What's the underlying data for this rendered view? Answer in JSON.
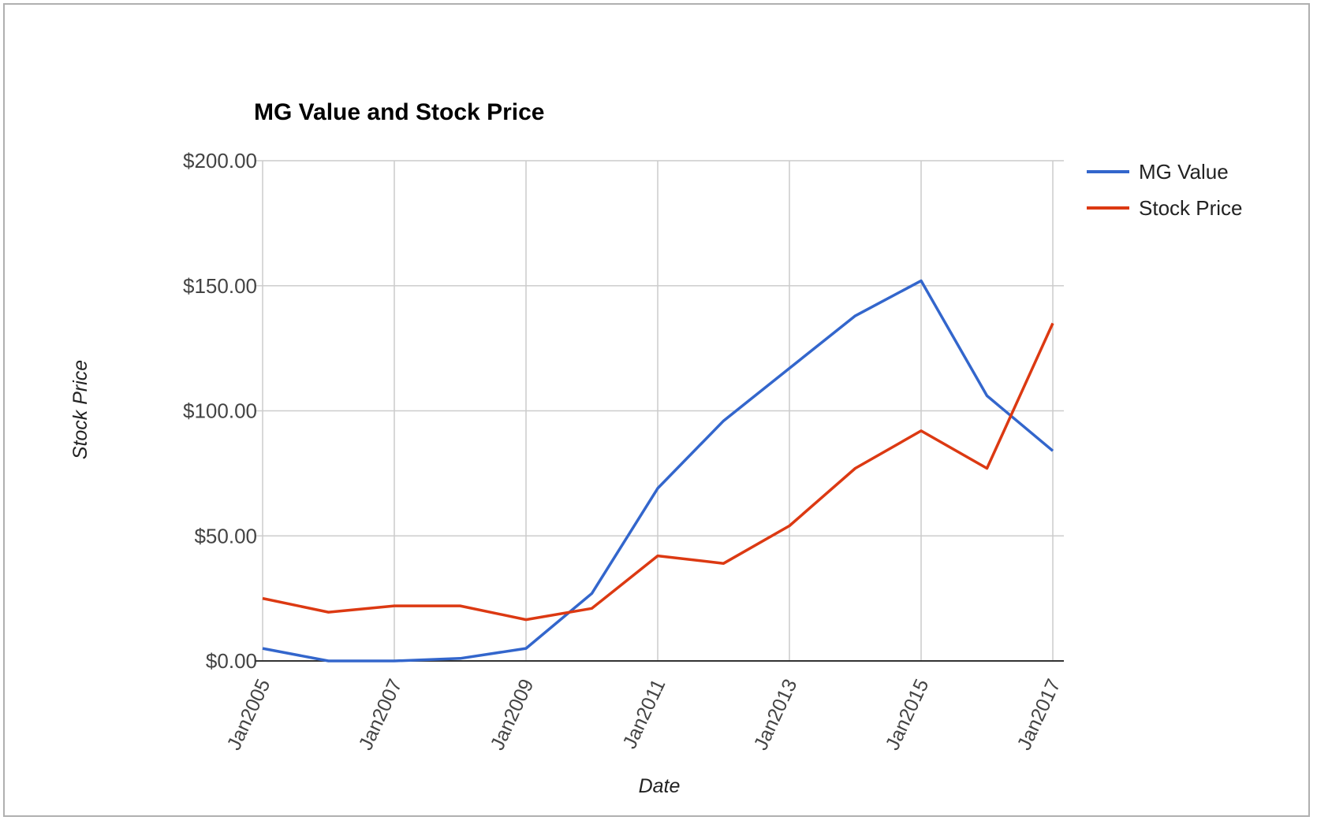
{
  "chart_data": {
    "type": "line",
    "title": "MG Value and Stock Price",
    "xlabel": "Date",
    "ylabel": "Stock Price",
    "x": [
      "2005-01",
      "2006-01",
      "2007-01",
      "2008-01",
      "2009-01",
      "2010-01",
      "2011-01",
      "2012-01",
      "2013-01",
      "2014-01",
      "2015-01",
      "2016-01",
      "2017-01"
    ],
    "x_tick_labels": [
      "Jan2005",
      "Jan2007",
      "Jan2009",
      "Jan2011",
      "Jan2013",
      "Jan2015",
      "Jan2017"
    ],
    "y_ticks": [
      0,
      50,
      100,
      150,
      200
    ],
    "y_tick_labels": [
      "$0.00",
      "$50.00",
      "$100.00",
      "$150.00",
      "$200.00"
    ],
    "ylim": [
      0,
      200
    ],
    "grid": true,
    "legend_position": "right",
    "series": [
      {
        "name": "MG Value",
        "color": "#3366cc",
        "values": [
          5,
          0,
          0,
          1,
          5,
          27,
          69,
          96,
          117,
          138,
          152,
          106,
          84
        ]
      },
      {
        "name": "Stock Price",
        "color": "#dc3912",
        "values": [
          25,
          19.5,
          22,
          22,
          16.5,
          21,
          42,
          39,
          54,
          77,
          92,
          77,
          135
        ]
      }
    ]
  }
}
